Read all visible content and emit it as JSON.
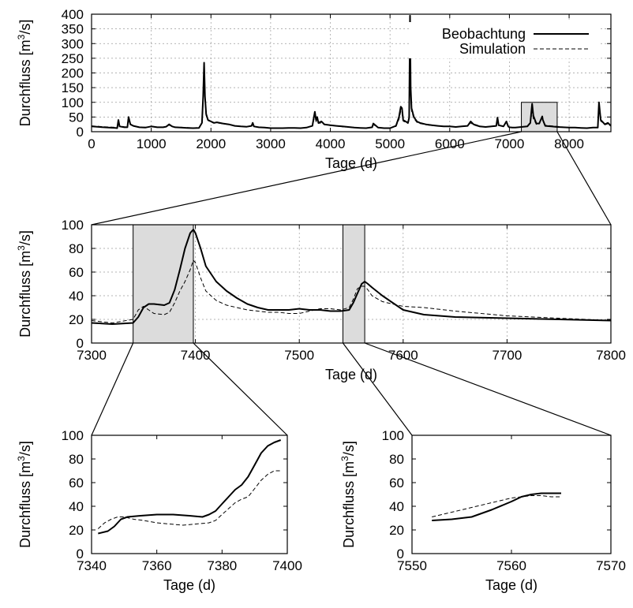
{
  "chart_data": [
    {
      "id": "overview",
      "type": "line",
      "xlabel": "Tage (d)",
      "ylabel": "Durchfluss [m3/s]",
      "xlim": [
        0,
        8700
      ],
      "ylim": [
        0,
        400
      ],
      "xticks": [
        0,
        1000,
        2000,
        3000,
        4000,
        5000,
        6000,
        7000,
        8000
      ],
      "yticks": [
        0,
        50,
        100,
        150,
        200,
        250,
        300,
        350,
        400
      ],
      "grid": true,
      "legend_position": "top-right",
      "zoom_region": {
        "x": [
          7200,
          7800
        ],
        "y": [
          0,
          100
        ]
      },
      "series": [
        {
          "name": "Beobachtung",
          "style": "solid",
          "x": [
            0,
            200,
            400,
            430,
            450,
            470,
            550,
            600,
            620,
            650,
            700,
            800,
            900,
            1000,
            1100,
            1200,
            1250,
            1300,
            1350,
            1400,
            1500,
            1600,
            1700,
            1800,
            1850,
            1870,
            1885,
            1900,
            1920,
            1950,
            2000,
            2050,
            2100,
            2200,
            2300,
            2400,
            2500,
            2600,
            2680,
            2700,
            2720,
            2800,
            2900,
            3000,
            3100,
            3200,
            3300,
            3400,
            3500,
            3600,
            3700,
            3740,
            3760,
            3780,
            3800,
            3850,
            3900,
            4000,
            4100,
            4200,
            4300,
            4400,
            4500,
            4600,
            4700,
            4720,
            4800,
            4900,
            5000,
            5100,
            5150,
            5180,
            5200,
            5220,
            5260,
            5300,
            5320,
            5335,
            5345,
            5360,
            5400,
            5450,
            5500,
            5600,
            5700,
            5800,
            5900,
            6000,
            6100,
            6200,
            6300,
            6350,
            6400,
            6450,
            6500,
            6600,
            6700,
            6780,
            6800,
            6820,
            6900,
            6950,
            6980,
            7000,
            7050,
            7100,
            7200,
            7300,
            7350,
            7380,
            7400,
            7450,
            7500,
            7550,
            7560,
            7600,
            7700,
            7800,
            7900,
            8000,
            8100,
            8200,
            8300,
            8400,
            8480,
            8500,
            8530,
            8600,
            8650,
            8700
          ],
          "y": [
            18,
            15,
            13,
            12,
            40,
            18,
            15,
            15,
            50,
            25,
            20,
            15,
            14,
            18,
            15,
            15,
            17,
            25,
            18,
            15,
            14,
            13,
            12,
            13,
            30,
            120,
            235,
            120,
            60,
            40,
            35,
            30,
            32,
            28,
            25,
            20,
            18,
            17,
            20,
            30,
            18,
            15,
            14,
            12,
            12,
            12,
            13,
            13,
            12,
            14,
            20,
            68,
            40,
            50,
            30,
            35,
            25,
            22,
            20,
            18,
            16,
            14,
            13,
            12,
            15,
            28,
            14,
            12,
            12,
            20,
            50,
            85,
            80,
            40,
            35,
            30,
            48,
            395,
            150,
            80,
            50,
            35,
            30,
            25,
            22,
            20,
            18,
            18,
            16,
            18,
            20,
            35,
            25,
            22,
            18,
            16,
            18,
            20,
            48,
            22,
            18,
            35,
            18,
            15,
            14,
            14,
            16,
            18,
            30,
            95,
            55,
            28,
            28,
            52,
            40,
            20,
            18,
            16,
            15,
            14,
            14,
            13,
            12,
            14,
            14,
            100,
            40,
            25,
            30,
            20
          ]
        },
        {
          "name": "Simulation",
          "style": "dashed",
          "x": [
            0,
            200,
            400,
            430,
            450,
            470,
            550,
            600,
            620,
            650,
            700,
            800,
            900,
            1000,
            1100,
            1200,
            1250,
            1300,
            1350,
            1400,
            1500,
            1600,
            1700,
            1800,
            1850,
            1870,
            1885,
            1900,
            1920,
            1950,
            2000,
            2050,
            2100,
            2200,
            2300,
            2400,
            2500,
            2600,
            2680,
            2700,
            2720,
            2800,
            2900,
            3000,
            3100,
            3200,
            3300,
            3400,
            3500,
            3600,
            3700,
            3740,
            3760,
            3780,
            3800,
            3850,
            3900,
            4000,
            4100,
            4200,
            4300,
            4400,
            4500,
            4600,
            4700,
            4720,
            4800,
            4900,
            5000,
            5100,
            5150,
            5180,
            5200,
            5220,
            5260,
            5300,
            5320,
            5335,
            5345,
            5360,
            5400,
            5450,
            5500,
            5600,
            5700,
            5800,
            5900,
            6000,
            6100,
            6200,
            6300,
            6350,
            6400,
            6450,
            6500,
            6600,
            6700,
            6780,
            6800,
            6820,
            6900,
            6950,
            6980,
            7000,
            7050,
            7100,
            7200,
            7300,
            7350,
            7380,
            7400,
            7450,
            7500,
            7550,
            7560,
            7600,
            7700,
            7800,
            7900,
            8000,
            8100,
            8200,
            8300,
            8400,
            8480,
            8500,
            8530,
            8600,
            8650,
            8700
          ],
          "y": [
            20,
            17,
            15,
            14,
            32,
            20,
            17,
            16,
            42,
            24,
            20,
            16,
            15,
            18,
            16,
            16,
            18,
            22,
            18,
            16,
            15,
            14,
            13,
            14,
            28,
            100,
            200,
            110,
            55,
            38,
            33,
            29,
            30,
            27,
            24,
            20,
            18,
            17,
            19,
            26,
            18,
            15,
            14,
            13,
            13,
            13,
            13,
            13,
            12,
            14,
            19,
            55,
            35,
            42,
            28,
            30,
            24,
            21,
            19,
            17,
            15,
            14,
            13,
            12,
            14,
            24,
            14,
            12,
            12,
            18,
            42,
            70,
            65,
            36,
            32,
            28,
            42,
            310,
            130,
            70,
            45,
            32,
            28,
            24,
            21,
            20,
            18,
            18,
            16,
            18,
            19,
            30,
            23,
            20,
            17,
            16,
            17,
            19,
            40,
            21,
            18,
            30,
            17,
            15,
            14,
            14,
            16,
            18,
            28,
            70,
            45,
            25,
            28,
            48,
            38,
            22,
            20,
            18,
            16,
            15,
            14,
            13,
            13,
            14,
            14,
            85,
            36,
            24,
            26,
            19
          ]
        }
      ]
    },
    {
      "id": "mid",
      "type": "line",
      "xlabel": "Tage (d)",
      "ylabel": "Durchfluss [m3/s]",
      "xlim": [
        7300,
        7800
      ],
      "ylim": [
        0,
        100
      ],
      "xticks": [
        7300,
        7400,
        7500,
        7600,
        7700,
        7800
      ],
      "yticks": [
        0,
        20,
        40,
        60,
        80,
        100
      ],
      "grid": true,
      "zoom_regions": [
        {
          "x": [
            7340,
            7398
          ],
          "y": [
            0,
            100
          ]
        },
        {
          "x": [
            7542,
            7563
          ],
          "y": [
            0,
            100
          ]
        }
      ],
      "series": [
        {
          "name": "Beobachtung",
          "style": "solid",
          "x": [
            7300,
            7320,
            7340,
            7345,
            7350,
            7355,
            7360,
            7370,
            7375,
            7380,
            7385,
            7390,
            7395,
            7398,
            7400,
            7405,
            7410,
            7420,
            7430,
            7440,
            7450,
            7460,
            7470,
            7480,
            7490,
            7500,
            7510,
            7520,
            7530,
            7540,
            7548,
            7552,
            7556,
            7560,
            7563,
            7566,
            7570,
            7580,
            7590,
            7600,
            7620,
            7650,
            7700,
            7750,
            7800
          ],
          "y": [
            17,
            16,
            17,
            22,
            30,
            33,
            33,
            32,
            34,
            45,
            62,
            80,
            93,
            96,
            93,
            80,
            65,
            52,
            44,
            38,
            33,
            30,
            28,
            28,
            28,
            29,
            28,
            28,
            27,
            27,
            28,
            34,
            42,
            50,
            52,
            50,
            47,
            40,
            34,
            28,
            24,
            22,
            21,
            20,
            19
          ]
        },
        {
          "name": "Simulation",
          "style": "dashed",
          "x": [
            7300,
            7320,
            7340,
            7345,
            7350,
            7355,
            7360,
            7370,
            7375,
            7380,
            7385,
            7390,
            7395,
            7398,
            7400,
            7405,
            7410,
            7420,
            7430,
            7440,
            7450,
            7460,
            7470,
            7480,
            7490,
            7500,
            7510,
            7520,
            7530,
            7540,
            7548,
            7552,
            7556,
            7560,
            7563,
            7566,
            7570,
            7580,
            7590,
            7600,
            7620,
            7650,
            7700,
            7750,
            7800
          ],
          "y": [
            19,
            17,
            20,
            28,
            31,
            28,
            25,
            24,
            26,
            34,
            44,
            52,
            62,
            70,
            68,
            55,
            44,
            36,
            32,
            30,
            28,
            27,
            26,
            26,
            25,
            25,
            27,
            29,
            29,
            28,
            30,
            37,
            46,
            48,
            48,
            45,
            40,
            35,
            33,
            31,
            30,
            27,
            23,
            21,
            19
          ]
        }
      ]
    },
    {
      "id": "zoom-left",
      "type": "line",
      "xlabel": "Tage (d)",
      "ylabel": "Durchfluss [m3/s]",
      "xlim": [
        7340,
        7400
      ],
      "ylim": [
        0,
        100
      ],
      "xticks": [
        7340,
        7360,
        7380,
        7400
      ],
      "yticks": [
        0,
        20,
        40,
        60,
        80,
        100
      ],
      "series": [
        {
          "name": "Beobachtung",
          "style": "solid",
          "x": [
            7342,
            7345,
            7347,
            7349,
            7351,
            7355,
            7360,
            7365,
            7370,
            7374,
            7376,
            7378,
            7380,
            7382,
            7384,
            7386,
            7388,
            7390,
            7392,
            7394,
            7396,
            7398
          ],
          "y": [
            17,
            19,
            23,
            29,
            31,
            32,
            33,
            33,
            32,
            31,
            33,
            36,
            42,
            48,
            54,
            58,
            65,
            75,
            85,
            91,
            94,
            96
          ]
        },
        {
          "name": "Simulation",
          "style": "dashed",
          "x": [
            7342,
            7344,
            7346,
            7348,
            7350,
            7353,
            7356,
            7360,
            7364,
            7368,
            7372,
            7376,
            7378,
            7380,
            7382,
            7384,
            7386,
            7388,
            7390,
            7392,
            7394,
            7396,
            7398
          ],
          "y": [
            21,
            26,
            29,
            31,
            31,
            29,
            28,
            26,
            25,
            24,
            25,
            26,
            28,
            33,
            38,
            43,
            46,
            48,
            55,
            62,
            67,
            70,
            70
          ]
        }
      ]
    },
    {
      "id": "zoom-right",
      "type": "line",
      "xlabel": "Tage (d)",
      "ylabel": "Durchfluss [m3/s]",
      "xlim": [
        7550,
        7570
      ],
      "ylim": [
        0,
        100
      ],
      "xticks": [
        7550,
        7560,
        7570
      ],
      "yticks": [
        0,
        20,
        40,
        60,
        80,
        100
      ],
      "series": [
        {
          "name": "Beobachtung",
          "style": "solid",
          "x": [
            7552,
            7554,
            7556,
            7558,
            7560,
            7561,
            7562,
            7563,
            7564,
            7565
          ],
          "y": [
            28,
            29,
            31,
            37,
            44,
            48,
            50,
            51,
            51,
            51
          ]
        },
        {
          "name": "Simulation",
          "style": "dashed",
          "x": [
            7552,
            7554,
            7556,
            7558,
            7560,
            7561,
            7562,
            7563,
            7564,
            7565
          ],
          "y": [
            31,
            35,
            39,
            43,
            47,
            48,
            49,
            49,
            48,
            48
          ]
        }
      ]
    }
  ],
  "legend": {
    "observed_label": "Beobachtung",
    "simulated_label": "Simulation"
  }
}
